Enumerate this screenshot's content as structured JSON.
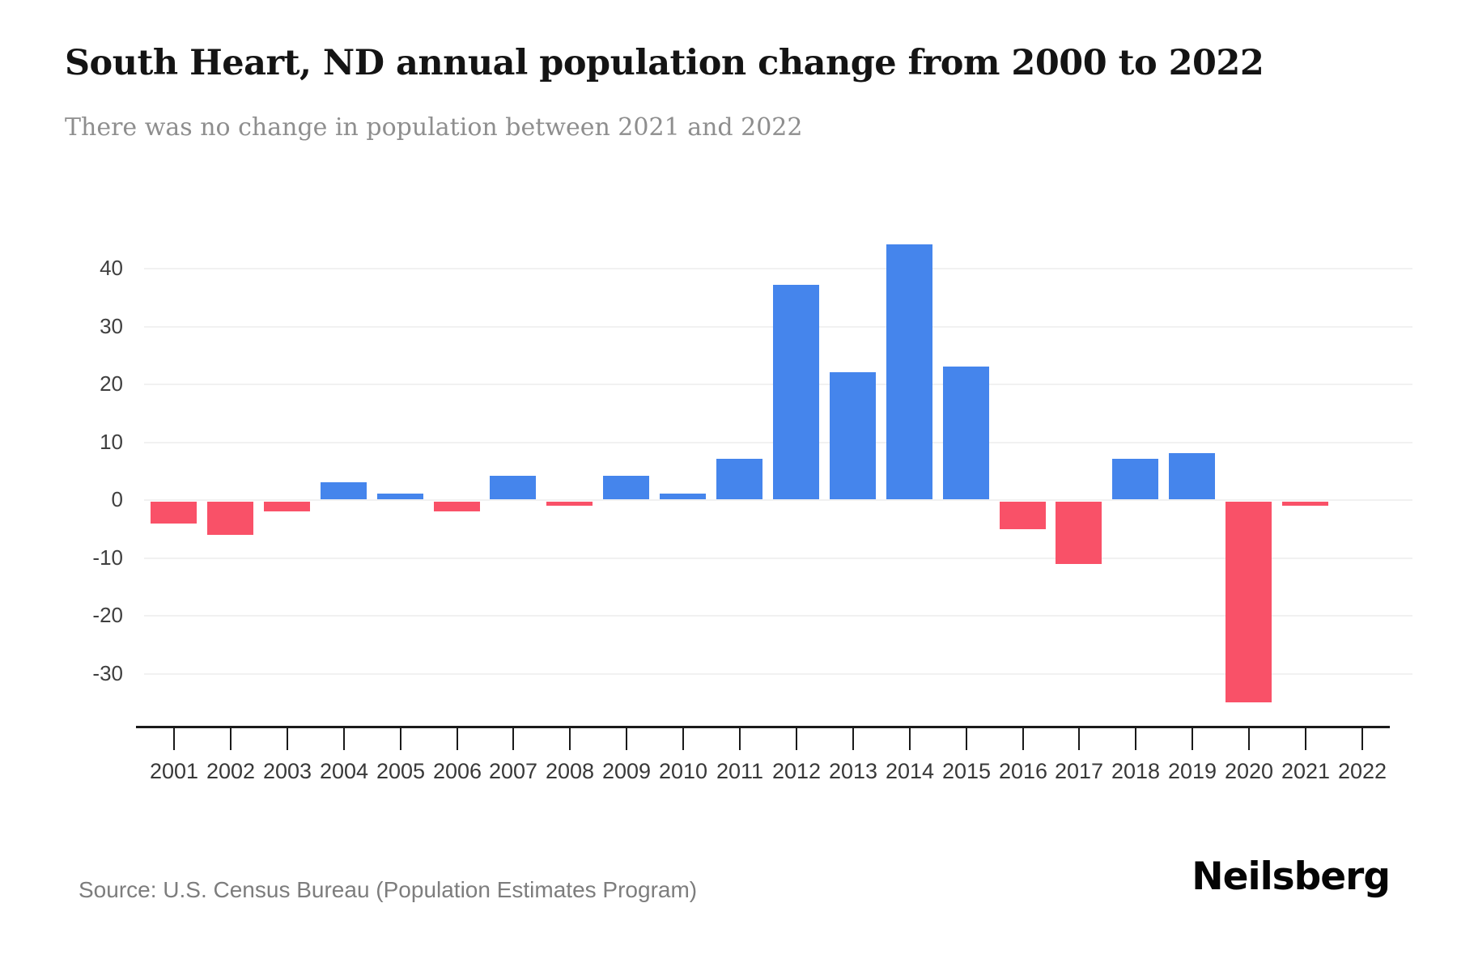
{
  "header": {
    "title": "South Heart, ND annual population change from 2000 to 2022",
    "subtitle": "There was no change in population between 2021 and 2022"
  },
  "footer": {
    "source": "Source: U.S. Census Bureau (Population Estimates Program)",
    "brand": "Neilsberg"
  },
  "colors": {
    "positive": "#4585EC",
    "negative": "#F95168",
    "grid": "#F1F1F1",
    "axis": "#1A1A1A"
  },
  "chart_data": {
    "type": "bar",
    "title": "South Heart, ND annual population change from 2000 to 2022",
    "subtitle": "There was no change in population between 2021 and 2022",
    "categories": [
      "2001",
      "2002",
      "2003",
      "2004",
      "2005",
      "2006",
      "2007",
      "2008",
      "2009",
      "2010",
      "2011",
      "2012",
      "2013",
      "2014",
      "2015",
      "2016",
      "2017",
      "2018",
      "2019",
      "2020",
      "2021",
      "2022"
    ],
    "values": [
      -4,
      -6,
      -2,
      3,
      1,
      -2,
      4,
      -1,
      4,
      1,
      7,
      37,
      22,
      44,
      23,
      -5,
      -11,
      7,
      8,
      -35,
      -1,
      0
    ],
    "xlabel": "",
    "ylabel": "",
    "ylim": [
      -40,
      45
    ],
    "yticks": [
      40,
      30,
      20,
      10,
      0,
      -10,
      -20,
      -30
    ],
    "grid": "horizontal",
    "legend": "none",
    "positive_color": "#4585EC",
    "negative_color": "#F95168"
  }
}
